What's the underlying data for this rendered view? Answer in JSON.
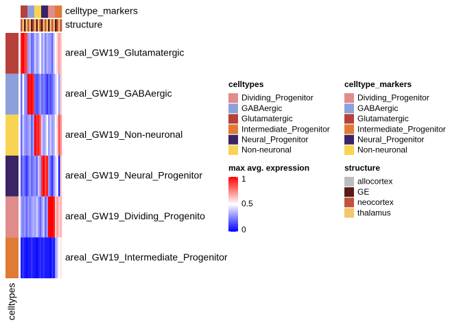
{
  "chart_data": {
    "type": "heatmap",
    "rows": [
      "areal_GW19_Glutamatergic",
      "areal_GW19_GABAergic",
      "areal_GW19_Non-neuronal",
      "areal_GW19_Neural_Progenitor",
      "areal_GW19_Dividing_Progenito",
      "areal_GW19_Intermediate_Progenitor"
    ],
    "values": [
      [
        0.95,
        1,
        0.9,
        0.85,
        0.3,
        0.35,
        0.2,
        0.25,
        0.4,
        0.3,
        0.35,
        0.5,
        0.3,
        0.4,
        0.25,
        0.35,
        0.3,
        0.3,
        0.2,
        0.4,
        0.5,
        0.6,
        0.7,
        0.6
      ],
      [
        0.2,
        0.5,
        0.3,
        0.25,
        1,
        0.95,
        1,
        0.9,
        0.2,
        0.15,
        0.2,
        0.3,
        0.2,
        0.25,
        0.2,
        0.1,
        0.2,
        0.15,
        0.2,
        0.3,
        0.4,
        0.5,
        0.3,
        0.6
      ],
      [
        0.2,
        0.4,
        0.3,
        0.25,
        0.3,
        0.35,
        0.2,
        0.3,
        1,
        0.9,
        0.95,
        0.8,
        0.4,
        0.3,
        0.35,
        0.5,
        0.3,
        0.4,
        0.3,
        0.35,
        0.5,
        0.6,
        0.85,
        0.7
      ],
      [
        0.15,
        0.25,
        0.2,
        0.1,
        0.2,
        0.3,
        0.2,
        0.25,
        0.3,
        0.2,
        0.4,
        0.3,
        0.9,
        1,
        0.85,
        0.95,
        0.3,
        0.2,
        0.1,
        0.3,
        0.4,
        0.5,
        0.05,
        0.6
      ],
      [
        0.3,
        0.25,
        0.3,
        0.2,
        0.3,
        0.25,
        0.3,
        0.35,
        0.3,
        0.4,
        0.3,
        0.2,
        0.3,
        0.4,
        0.2,
        0.3,
        1,
        1,
        1,
        0.95,
        0.6,
        0.7,
        0.6,
        0.65
      ],
      [
        0.05,
        0.1,
        0.05,
        0.02,
        0.05,
        0.05,
        0.1,
        0.05,
        0.05,
        0.02,
        0.05,
        0.1,
        0.05,
        0.1,
        0.05,
        0.05,
        0.05,
        0.02,
        0.1,
        0.05,
        0.3,
        0.4,
        0.5,
        0.55
      ]
    ],
    "zlim": [
      0,
      1
    ],
    "zticks": [
      0,
      0.5,
      1
    ],
    "scale_colors": [
      "#0000ff",
      "#ffffff",
      "#ff0000"
    ],
    "row_annotation": {
      "name": "celltypes",
      "values": [
        "Glutamatergic",
        "GABAergic",
        "Non-neuronal",
        "Neural_Progenitor",
        "Dividing_Progenitor",
        "Intermediate_Progenitor"
      ]
    },
    "column_annotations": [
      {
        "name": "celltype_markers",
        "values": [
          "Glutamatergic",
          "Glutamatergic",
          "Glutamatergic",
          "Glutamatergic",
          "GABAergic",
          "GABAergic",
          "GABAergic",
          "GABAergic",
          "Non-neuronal",
          "Non-neuronal",
          "Non-neuronal",
          "Non-neuronal",
          "Neural_Progenitor",
          "Neural_Progenitor",
          "Neural_Progenitor",
          "Neural_Progenitor",
          "Dividing_Progenitor",
          "Dividing_Progenitor",
          "Dividing_Progenitor",
          "Dividing_Progenitor",
          "Intermediate_Progenitor",
          "Intermediate_Progenitor",
          "Intermediate_Progenitor",
          "Intermediate_Progenitor"
        ]
      },
      {
        "name": "structure",
        "values": [
          "neocortex",
          "thalamus",
          "GE",
          "thalamus",
          "neocortex",
          "thalamus",
          "GE",
          "neocortex",
          "thalamus",
          "GE",
          "thalamus",
          "neocortex",
          "GE",
          "thalamus",
          "neocortex",
          "thalamus",
          "GE",
          "thalamus",
          "neocortex",
          "thalamus",
          "GE",
          "neocortex",
          "thalamus",
          "neocortex"
        ]
      }
    ],
    "legends": [
      {
        "title": "celltypes",
        "items": [
          {
            "name": "Dividing_Progenitor",
            "color": "#e08c8a"
          },
          {
            "name": "GABAergic",
            "color": "#8da0db"
          },
          {
            "name": "Glutamatergic",
            "color": "#b5413a"
          },
          {
            "name": "Intermediate_Progenitor",
            "color": "#e07b35"
          },
          {
            "name": "Neural_Progenitor",
            "color": "#3b2466"
          },
          {
            "name": "Non-neuronal",
            "color": "#f9d452"
          }
        ]
      },
      {
        "title": "celltype_markers",
        "items": [
          {
            "name": "Dividing_Progenitor",
            "color": "#e08c8a"
          },
          {
            "name": "GABAergic",
            "color": "#8da0db"
          },
          {
            "name": "Glutamatergic",
            "color": "#b5413a"
          },
          {
            "name": "Intermediate_Progenitor",
            "color": "#e07b35"
          },
          {
            "name": "Neural_Progenitor",
            "color": "#3b2466"
          },
          {
            "name": "Non-neuronal",
            "color": "#f9d452"
          }
        ]
      },
      {
        "title": "structure",
        "items": [
          {
            "name": "allocortex",
            "color": "#bdbdbd"
          },
          {
            "name": "GE",
            "color": "#5c1a14"
          },
          {
            "name": "neocortex",
            "color": "#c0533c"
          },
          {
            "name": "thalamus",
            "color": "#f6c56f"
          }
        ]
      }
    ],
    "scale_title": "max avg. expression"
  }
}
